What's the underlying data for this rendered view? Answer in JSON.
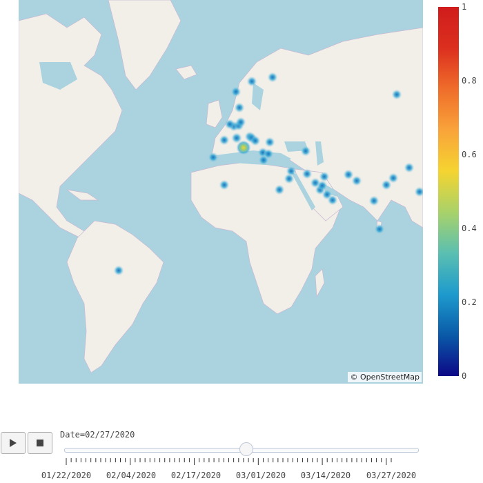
{
  "map": {
    "attribution": "© OpenStreetMap",
    "land_color": "#f2efe9",
    "water_color": "#aad3df",
    "border_color": "#b9a6c6",
    "hotspots": [
      {
        "place": "Brazil",
        "value": 0.2
      },
      {
        "place": "Morocco",
        "value": 0.2
      },
      {
        "place": "Algeria",
        "value": 0.2
      },
      {
        "place": "Portugal",
        "value": 0.2
      },
      {
        "place": "Spain",
        "value": 0.2
      },
      {
        "place": "France",
        "value": 0.2
      },
      {
        "place": "United Kingdom",
        "value": 0.2
      },
      {
        "place": "Belgium",
        "value": 0.2
      },
      {
        "place": "Netherlands",
        "value": 0.2
      },
      {
        "place": "Germany",
        "value": 0.2
      },
      {
        "place": "Denmark",
        "value": 0.2
      },
      {
        "place": "Norway",
        "value": 0.2
      },
      {
        "place": "Sweden",
        "value": 0.2
      },
      {
        "place": "Finland",
        "value": 0.2
      },
      {
        "place": "Estonia",
        "value": 0.2
      },
      {
        "place": "Switzerland",
        "value": 0.25
      },
      {
        "place": "Austria",
        "value": 0.2
      },
      {
        "place": "Italy",
        "value": 0.6
      },
      {
        "place": "Croatia",
        "value": 0.2
      },
      {
        "place": "Romania",
        "value": 0.2
      },
      {
        "place": "Greece",
        "value": 0.2
      },
      {
        "place": "North Macedonia",
        "value": 0.2
      },
      {
        "place": "Georgia",
        "value": 0.2
      },
      {
        "place": "Lebanon",
        "value": 0.2
      },
      {
        "place": "Israel",
        "value": 0.2
      },
      {
        "place": "Iraq",
        "value": 0.2
      },
      {
        "place": "Iran",
        "value": 0.2
      },
      {
        "place": "Kuwait",
        "value": 0.2
      },
      {
        "place": "Bahrain",
        "value": 0.2
      },
      {
        "place": "Qatar",
        "value": 0.2
      },
      {
        "place": "United Arab Emirates",
        "value": 0.2
      },
      {
        "place": "Oman",
        "value": 0.2
      },
      {
        "place": "Afghanistan",
        "value": 0.2
      },
      {
        "place": "Pakistan",
        "value": 0.2
      },
      {
        "place": "India",
        "value": 0.2
      },
      {
        "place": "Nepal",
        "value": 0.2
      },
      {
        "place": "Sri Lanka",
        "value": 0.2
      },
      {
        "place": "Russia",
        "value": 0.2
      },
      {
        "place": "China West",
        "value": 0.2
      },
      {
        "place": "China",
        "value": 0.2
      },
      {
        "place": "Thailand",
        "value": 0.2
      }
    ]
  },
  "colorbar": {
    "ticks": [
      "1",
      "0.8",
      "0.6",
      "0.4",
      "0.2",
      "0"
    ],
    "colors": [
      "#0d0887",
      "#0a5aa8",
      "#1e9bcd",
      "#5bbfb1",
      "#a9d269",
      "#f5d430",
      "#f9a33a",
      "#ef6d2a",
      "#dc2f1f",
      "#d01c1c"
    ]
  },
  "controls": {
    "date_prefix": "Date=",
    "current_date": "02/27/2020",
    "slider_fraction": 0.515,
    "tick_labels": [
      "01/22/2020",
      "02/04/2020",
      "02/17/2020",
      "03/01/2020",
      "03/14/2020",
      "03/27/2020"
    ]
  }
}
